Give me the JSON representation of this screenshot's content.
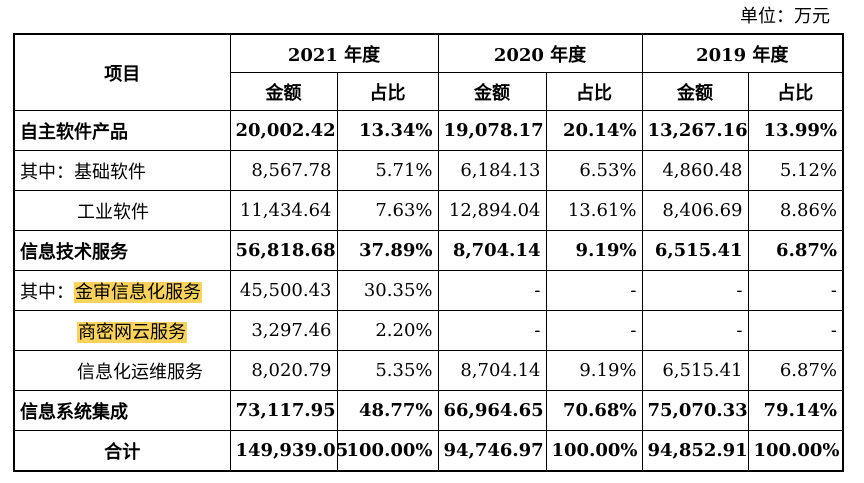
{
  "unit_label": "单位：万元",
  "header": {
    "item": "项目",
    "years": [
      "2021 年度",
      "2020 年度",
      "2019 年度"
    ],
    "amount": "金额",
    "ratio": "占比"
  },
  "rows": [
    {
      "prefix": "",
      "label": "自主软件产品",
      "v": [
        "20,002.42",
        "13.34%",
        "19,078.17",
        "20.14%",
        "13,267.16",
        "13.99%"
      ]
    },
    {
      "prefix": "其中：",
      "label": "基础软件",
      "v": [
        "8,567.78",
        "5.71%",
        "6,184.13",
        "6.53%",
        "4,860.48",
        "5.12%"
      ]
    },
    {
      "prefix": "",
      "label": "工业软件",
      "v": [
        "11,434.64",
        "7.63%",
        "12,894.04",
        "13.61%",
        "8,406.69",
        "8.86%"
      ]
    },
    {
      "prefix": "",
      "label": "信息技术服务",
      "v": [
        "56,818.68",
        "37.89%",
        "8,704.14",
        "9.19%",
        "6,515.41",
        "6.87%"
      ]
    },
    {
      "prefix": "其中：",
      "label": "金审信息化服务",
      "v": [
        "45,500.43",
        "30.35%",
        "-",
        "-",
        "-",
        "-"
      ]
    },
    {
      "prefix": "",
      "label": "商密网云服务",
      "v": [
        "3,297.46",
        "2.20%",
        "-",
        "-",
        "-",
        "-"
      ]
    },
    {
      "prefix": "",
      "label": "信息化运维服务",
      "v": [
        "8,020.79",
        "5.35%",
        "8,704.14",
        "9.19%",
        "6,515.41",
        "6.87%"
      ]
    },
    {
      "prefix": "",
      "label": "信息系统集成",
      "v": [
        "73,117.95",
        "48.77%",
        "66,964.65",
        "70.68%",
        "75,070.33",
        "79.14%"
      ]
    },
    {
      "prefix": "",
      "label": "合计",
      "v": [
        "149,939.05",
        "100.00%",
        "94,746.97",
        "100.00%",
        "94,852.91",
        "100.00%"
      ]
    }
  ]
}
